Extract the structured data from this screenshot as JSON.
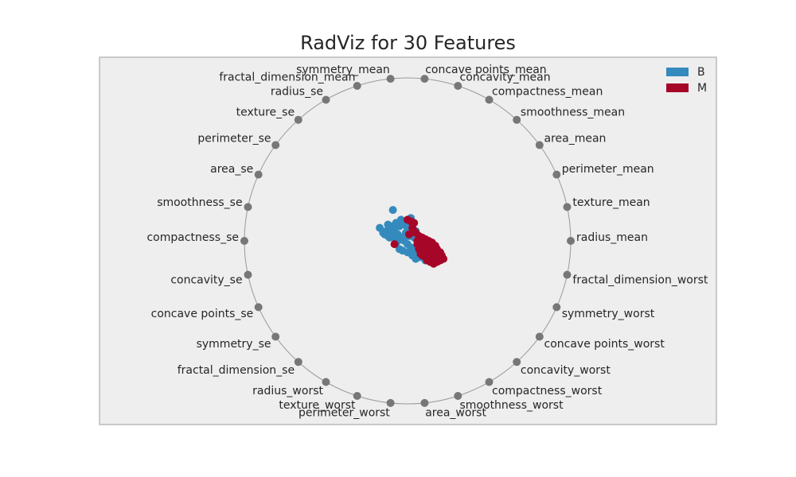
{
  "chart_data": {
    "type": "scatter",
    "title": "RadViz for 30 Features",
    "legend_position": "top-right",
    "features": [
      "radius_mean",
      "texture_mean",
      "perimeter_mean",
      "area_mean",
      "smoothness_mean",
      "compactness_mean",
      "concavity_mean",
      "concave points_mean",
      "symmetry_mean",
      "fractal_dimension_mean",
      "radius_se",
      "texture_se",
      "perimeter_se",
      "area_se",
      "smoothness_se",
      "compactness_se",
      "concavity_se",
      "concave points_se",
      "symmetry_se",
      "fractal_dimension_se",
      "radius_worst",
      "texture_worst",
      "perimeter_worst",
      "area_worst",
      "smoothness_worst",
      "compactness_worst",
      "concavity_worst",
      "concave points_worst",
      "symmetry_worst",
      "fractal_dimension_worst"
    ],
    "series": [
      {
        "name": "B",
        "color": "#348ABD",
        "points": [
          [
            -0.09,
            0.19
          ],
          [
            -0.17,
            0.08
          ],
          [
            -0.14,
            0.04
          ],
          [
            -0.11,
            0.02
          ],
          [
            -0.12,
            0.1
          ],
          [
            -0.1,
            0.05
          ],
          [
            -0.08,
            0.07
          ],
          [
            -0.06,
            0.04
          ],
          [
            -0.05,
            0.09
          ],
          [
            -0.03,
            0.12
          ],
          [
            -0.02,
            0.1
          ],
          [
            0.0,
            0.08
          ],
          [
            0.02,
            0.06
          ],
          [
            0.03,
            0.1
          ],
          [
            0.05,
            0.06
          ],
          [
            -0.04,
            0.02
          ],
          [
            -0.02,
            0.0
          ],
          [
            0.0,
            -0.02
          ],
          [
            0.02,
            -0.04
          ],
          [
            -0.07,
            -0.01
          ],
          [
            -0.05,
            -0.05
          ],
          [
            -0.03,
            -0.06
          ],
          [
            0.0,
            -0.07
          ],
          [
            0.04,
            -0.05
          ],
          [
            0.06,
            -0.08
          ],
          [
            0.08,
            -0.1
          ],
          [
            0.1,
            -0.09
          ],
          [
            0.12,
            -0.1
          ],
          [
            0.14,
            -0.11
          ],
          [
            0.16,
            -0.1
          ],
          [
            0.01,
            0.03
          ],
          [
            -0.01,
            0.05
          ],
          [
            0.04,
            0.02
          ],
          [
            0.06,
            0.01
          ],
          [
            -0.13,
            0.06
          ],
          [
            -0.15,
            0.05
          ],
          [
            -0.1,
            0.09
          ],
          [
            -0.07,
            0.11
          ],
          [
            -0.04,
            0.13
          ],
          [
            0.02,
            0.14
          ],
          [
            0.0,
            0.12
          ],
          [
            -0.06,
            0.0
          ],
          [
            -0.08,
            0.02
          ],
          [
            0.07,
            -0.04
          ],
          [
            0.1,
            -0.06
          ],
          [
            -0.12,
            0.03
          ],
          [
            0.03,
            -0.09
          ],
          [
            0.05,
            -0.11
          ],
          [
            0.08,
            -0.07
          ],
          [
            0.11,
            -0.12
          ]
        ]
      },
      {
        "name": "M",
        "color": "#A60628",
        "points": [
          [
            0.0,
            0.13
          ],
          [
            0.02,
            0.12
          ],
          [
            0.04,
            0.11
          ],
          [
            0.03,
            0.08
          ],
          [
            0.01,
            0.04
          ],
          [
            -0.08,
            -0.02
          ],
          [
            0.05,
            0.05
          ],
          [
            0.07,
            0.03
          ],
          [
            0.09,
            0.02
          ],
          [
            0.11,
            0.01
          ],
          [
            0.13,
            0.0
          ],
          [
            0.15,
            -0.01
          ],
          [
            0.08,
            -0.01
          ],
          [
            0.1,
            -0.03
          ],
          [
            0.12,
            -0.04
          ],
          [
            0.14,
            -0.05
          ],
          [
            0.16,
            -0.06
          ],
          [
            0.18,
            -0.07
          ],
          [
            0.06,
            -0.02
          ],
          [
            0.09,
            -0.06
          ],
          [
            0.11,
            -0.07
          ],
          [
            0.13,
            -0.08
          ],
          [
            0.15,
            -0.09
          ],
          [
            0.17,
            -0.1
          ],
          [
            0.19,
            -0.11
          ],
          [
            0.12,
            -0.12
          ],
          [
            0.14,
            -0.13
          ],
          [
            0.16,
            -0.14
          ],
          [
            0.18,
            -0.13
          ],
          [
            0.2,
            -0.12
          ],
          [
            0.21,
            -0.09
          ],
          [
            0.22,
            -0.11
          ],
          [
            0.2,
            -0.07
          ],
          [
            0.17,
            -0.03
          ],
          [
            0.15,
            -0.02
          ],
          [
            0.13,
            -0.11
          ],
          [
            0.11,
            -0.1
          ],
          [
            0.09,
            -0.09
          ],
          [
            0.1,
            0.0
          ],
          [
            0.12,
            -0.02
          ],
          [
            0.14,
            -0.03
          ],
          [
            0.16,
            -0.04
          ],
          [
            0.18,
            -0.05
          ],
          [
            0.19,
            -0.09
          ],
          [
            0.21,
            -0.1
          ],
          [
            0.07,
            -0.05
          ],
          [
            0.08,
            -0.08
          ],
          [
            0.06,
            0.0
          ],
          [
            0.04,
            0.06
          ],
          [
            0.13,
            -0.06
          ],
          [
            0.15,
            -0.07
          ],
          [
            0.17,
            -0.08
          ],
          [
            0.12,
            -0.09
          ],
          [
            0.16,
            -0.12
          ]
        ]
      }
    ]
  }
}
